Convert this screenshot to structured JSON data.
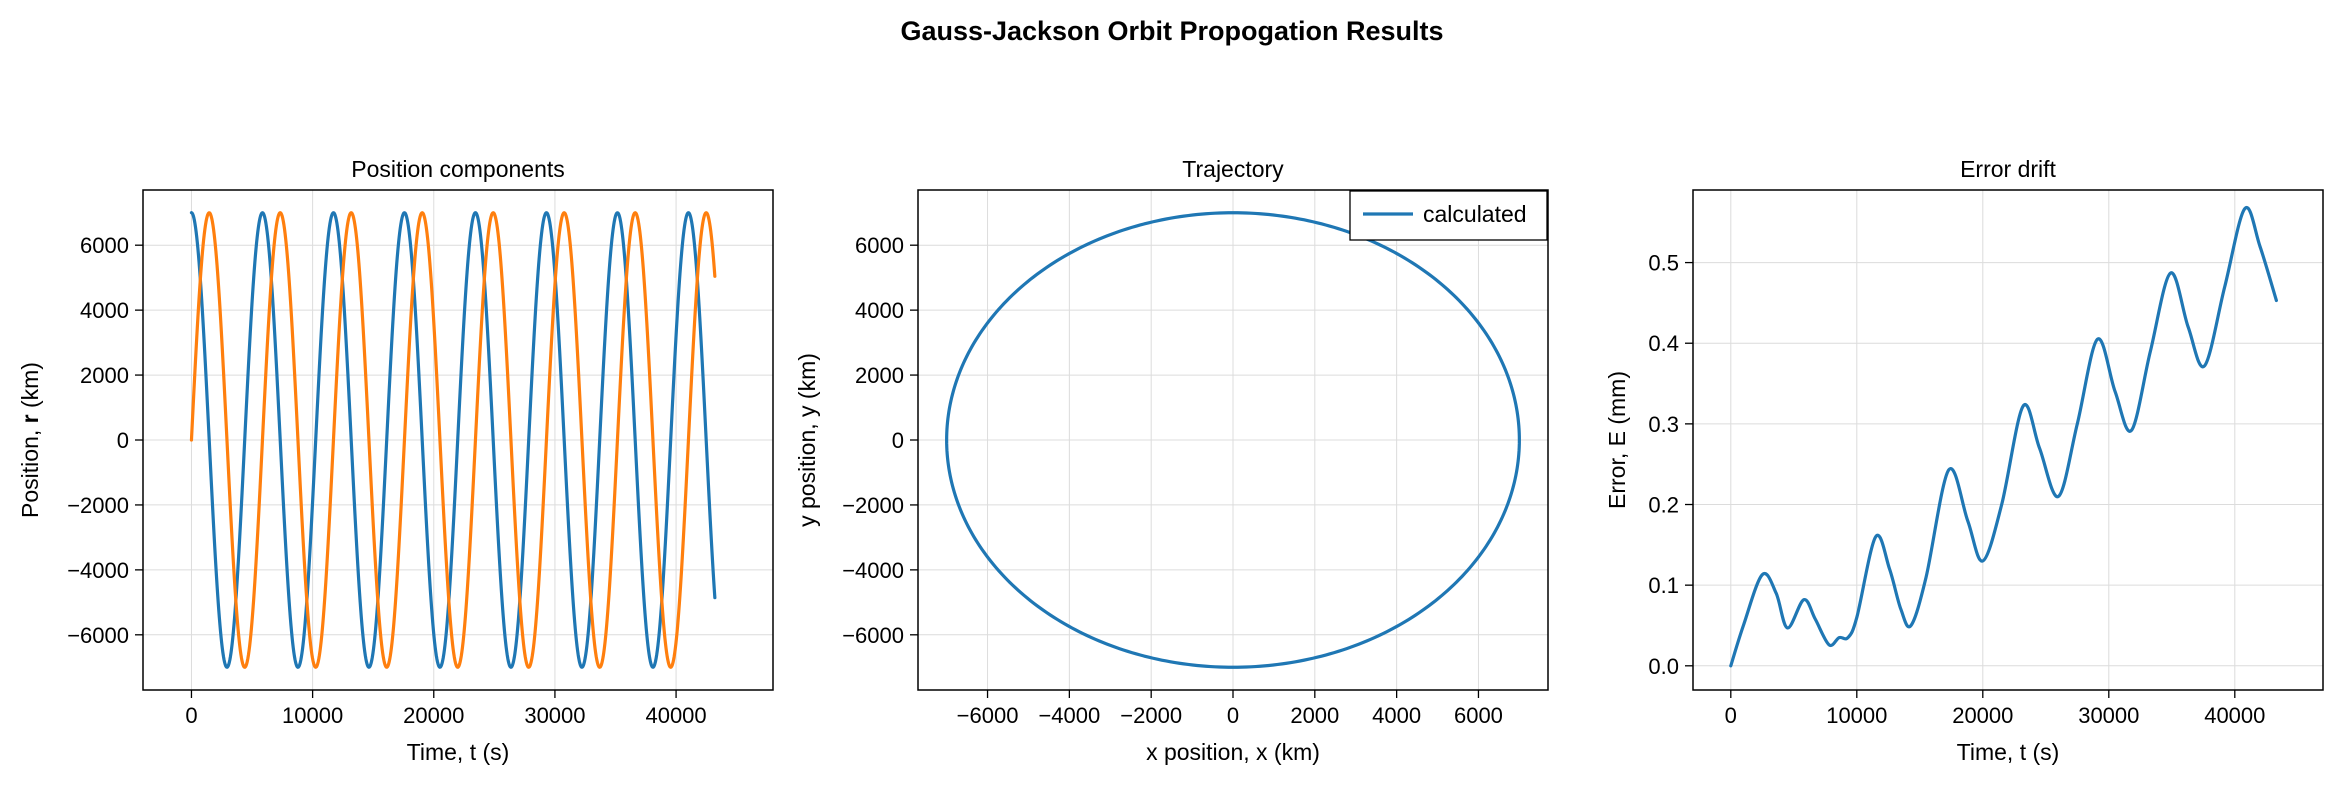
{
  "figure": {
    "suptitle": "Gauss-Jackson Orbit Propogation Results"
  },
  "colors": {
    "series_1": "#1f77b4",
    "series_2": "#ff7f0e"
  },
  "chart_data": [
    {
      "id": "position",
      "type": "line",
      "title": "Position components",
      "xlabel": "Time, t (s)",
      "ylabel_prefix": "Position, ",
      "ylabel_bold": "r",
      "ylabel_suffix": " (km)",
      "xlim": [
        -4000,
        48000
      ],
      "ylim": [
        -7700,
        7700
      ],
      "xticks": [
        0,
        10000,
        20000,
        30000,
        40000
      ],
      "xtick_labels": [
        "0",
        "10000",
        "20000",
        "30000",
        "40000"
      ],
      "yticks": [
        -6000,
        -4000,
        -2000,
        0,
        2000,
        4000,
        6000
      ],
      "ytick_labels": [
        "−6000",
        "−4000",
        "−2000",
        "0",
        "2000",
        "4000",
        "6000"
      ],
      "grid": true,
      "series_model": {
        "amplitude_km": 7000,
        "period_s": 5860,
        "t_start_s": 0,
        "t_end_s": 43200,
        "components": [
          {
            "component": "x",
            "form": "cos",
            "color": "#1f77b4"
          },
          {
            "component": "y",
            "form": "sin",
            "color": "#ff7f0e"
          }
        ]
      }
    },
    {
      "id": "trajectory",
      "type": "line",
      "title": "Trajectory",
      "xlabel": "x position, x (km)",
      "ylabel": "y position, y (km)",
      "xlim": [
        -7700,
        7700
      ],
      "ylim": [
        -7700,
        7700
      ],
      "xticks": [
        -6000,
        -4000,
        -2000,
        0,
        2000,
        4000,
        6000
      ],
      "xtick_labels": [
        "−6000",
        "−4000",
        "−2000",
        "0",
        "2000",
        "4000",
        "6000"
      ],
      "yticks": [
        -6000,
        -4000,
        -2000,
        0,
        2000,
        4000,
        6000
      ],
      "ytick_labels": [
        "−6000",
        "−4000",
        "−2000",
        "0",
        "2000",
        "4000",
        "6000"
      ],
      "grid": true,
      "legend": {
        "location": "upper right",
        "entries": [
          {
            "label": "calculated",
            "color": "#1f77b4"
          }
        ]
      },
      "series_model": {
        "shape": "circle",
        "radius_km": 7000,
        "color": "#1f77b4"
      }
    },
    {
      "id": "error",
      "type": "line",
      "title": "Error drift",
      "xlabel": "Time, t (s)",
      "ylabel": "Error, E (mm)",
      "xlim": [
        -3000,
        47000
      ],
      "ylim": [
        -0.03,
        0.59
      ],
      "xticks": [
        0,
        10000,
        20000,
        30000,
        40000
      ],
      "xtick_labels": [
        "0",
        "10000",
        "20000",
        "30000",
        "40000"
      ],
      "yticks": [
        0.0,
        0.1,
        0.2,
        0.3,
        0.4,
        0.5
      ],
      "ytick_labels": [
        "0.0",
        "0.1",
        "0.2",
        "0.3",
        "0.4",
        "0.5"
      ],
      "grid": true,
      "series": [
        {
          "color": "#1f77b4",
          "x": [
            0,
            1000,
            2500,
            3600,
            4500,
            5800,
            6700,
            7800,
            8600,
            9300,
            10000,
            11500,
            12600,
            13500,
            14300,
            15500,
            17300,
            18800,
            20000,
            21500,
            23200,
            24500,
            26000,
            27500,
            29100,
            30500,
            31800,
            33300,
            34900,
            36300,
            37600,
            39200,
            40800,
            42000,
            43300
          ],
          "y": [
            0.0,
            0.05,
            0.113,
            0.09,
            0.047,
            0.082,
            0.058,
            0.026,
            0.035,
            0.035,
            0.06,
            0.16,
            0.12,
            0.07,
            0.05,
            0.11,
            0.243,
            0.18,
            0.13,
            0.2,
            0.322,
            0.27,
            0.21,
            0.3,
            0.405,
            0.34,
            0.292,
            0.39,
            0.487,
            0.42,
            0.372,
            0.47,
            0.567,
            0.52,
            0.453
          ]
        }
      ]
    }
  ]
}
